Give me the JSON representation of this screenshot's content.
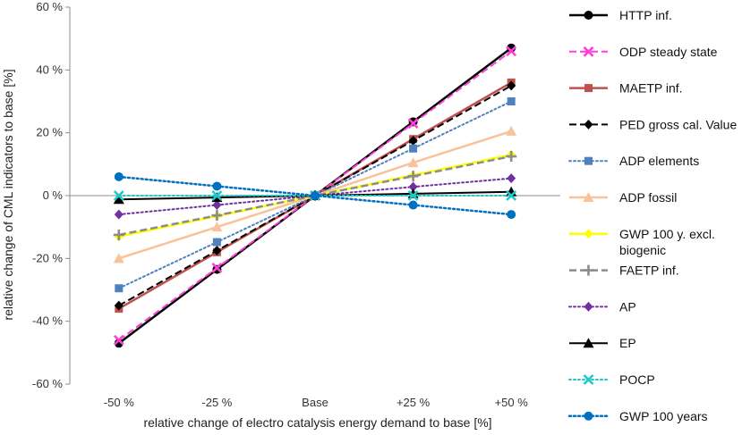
{
  "chart_data": {
    "type": "line",
    "title": "",
    "xlabel": "relative change of electro catalysis energy demand to base [%]",
    "ylabel": "relative change of CML indicators to base [%]",
    "categories": [
      "-50 %",
      "-25 %",
      "Base",
      "+25 %",
      "+50 %"
    ],
    "ylim": [
      -60,
      60
    ],
    "yticks": [
      -60,
      -40,
      -20,
      0,
      20,
      40,
      60
    ],
    "ytick_labels": [
      "-60 %",
      "-40 %",
      "-20 %",
      "0 %",
      "20 %",
      "40 %",
      "60 %"
    ],
    "grid": false,
    "legend_position": "right",
    "series": [
      {
        "name": "HTTP inf.",
        "values": [
          -47,
          -23.5,
          0,
          23.5,
          47
        ],
        "color": "#000000",
        "dash": "solid",
        "marker": "circle",
        "width": 2.5
      },
      {
        "name": "ODP steady state",
        "values": [
          -46,
          -23,
          0,
          23,
          46
        ],
        "color": "#ff3fd8",
        "dash": "dashed",
        "marker": "cross",
        "width": 2
      },
      {
        "name": "MAETP inf.",
        "values": [
          -36,
          -18,
          0,
          18,
          36
        ],
        "color": "#c0504d",
        "dash": "solid",
        "marker": "square",
        "width": 2.5
      },
      {
        "name": "PED gross cal. Value",
        "values": [
          -35,
          -17.5,
          0,
          17.5,
          35
        ],
        "color": "#000000",
        "dash": "dashed",
        "marker": "diamond",
        "width": 2
      },
      {
        "name": "ADP elements",
        "values": [
          -29.5,
          -14.8,
          0,
          15,
          30
        ],
        "color": "#4f81bd",
        "dash": "dotted",
        "marker": "square",
        "width": 2
      },
      {
        "name": "ADP fossil",
        "values": [
          -20,
          -10,
          0,
          10.5,
          20.5
        ],
        "color": "#f9c298",
        "dash": "solid",
        "marker": "triangle",
        "width": 2.5
      },
      {
        "name": "GWP 100 y. excl. biogenic",
        "values": [
          -13,
          -6.5,
          0,
          6.5,
          13
        ],
        "color": "#ffff00",
        "dash": "solid",
        "marker": "diamond",
        "width": 2.5
      },
      {
        "name": "FAETP inf.",
        "values": [
          -12.5,
          -6.3,
          0,
          6.2,
          12.5
        ],
        "color": "#8c8c8c",
        "dash": "dashed",
        "marker": "plus",
        "width": 2.5
      },
      {
        "name": "AP",
        "values": [
          -6,
          -3,
          0,
          2.8,
          5.5
        ],
        "color": "#7030a0",
        "dash": "dotted",
        "marker": "diamond",
        "width": 2
      },
      {
        "name": "EP",
        "values": [
          -1.2,
          -0.6,
          0,
          0.6,
          1.2
        ],
        "color": "#000000",
        "dash": "solid",
        "marker": "triangle",
        "width": 2
      },
      {
        "name": "POCP",
        "values": [
          0,
          0,
          0,
          0,
          0
        ],
        "color": "#1ec8c8",
        "dash": "dotted",
        "marker": "cross",
        "width": 2
      },
      {
        "name": "GWP 100 years",
        "values": [
          6,
          3,
          0,
          -3,
          -6
        ],
        "color": "#0070c0",
        "dash": "dotted",
        "marker": "circle",
        "width": 2.5
      }
    ]
  }
}
